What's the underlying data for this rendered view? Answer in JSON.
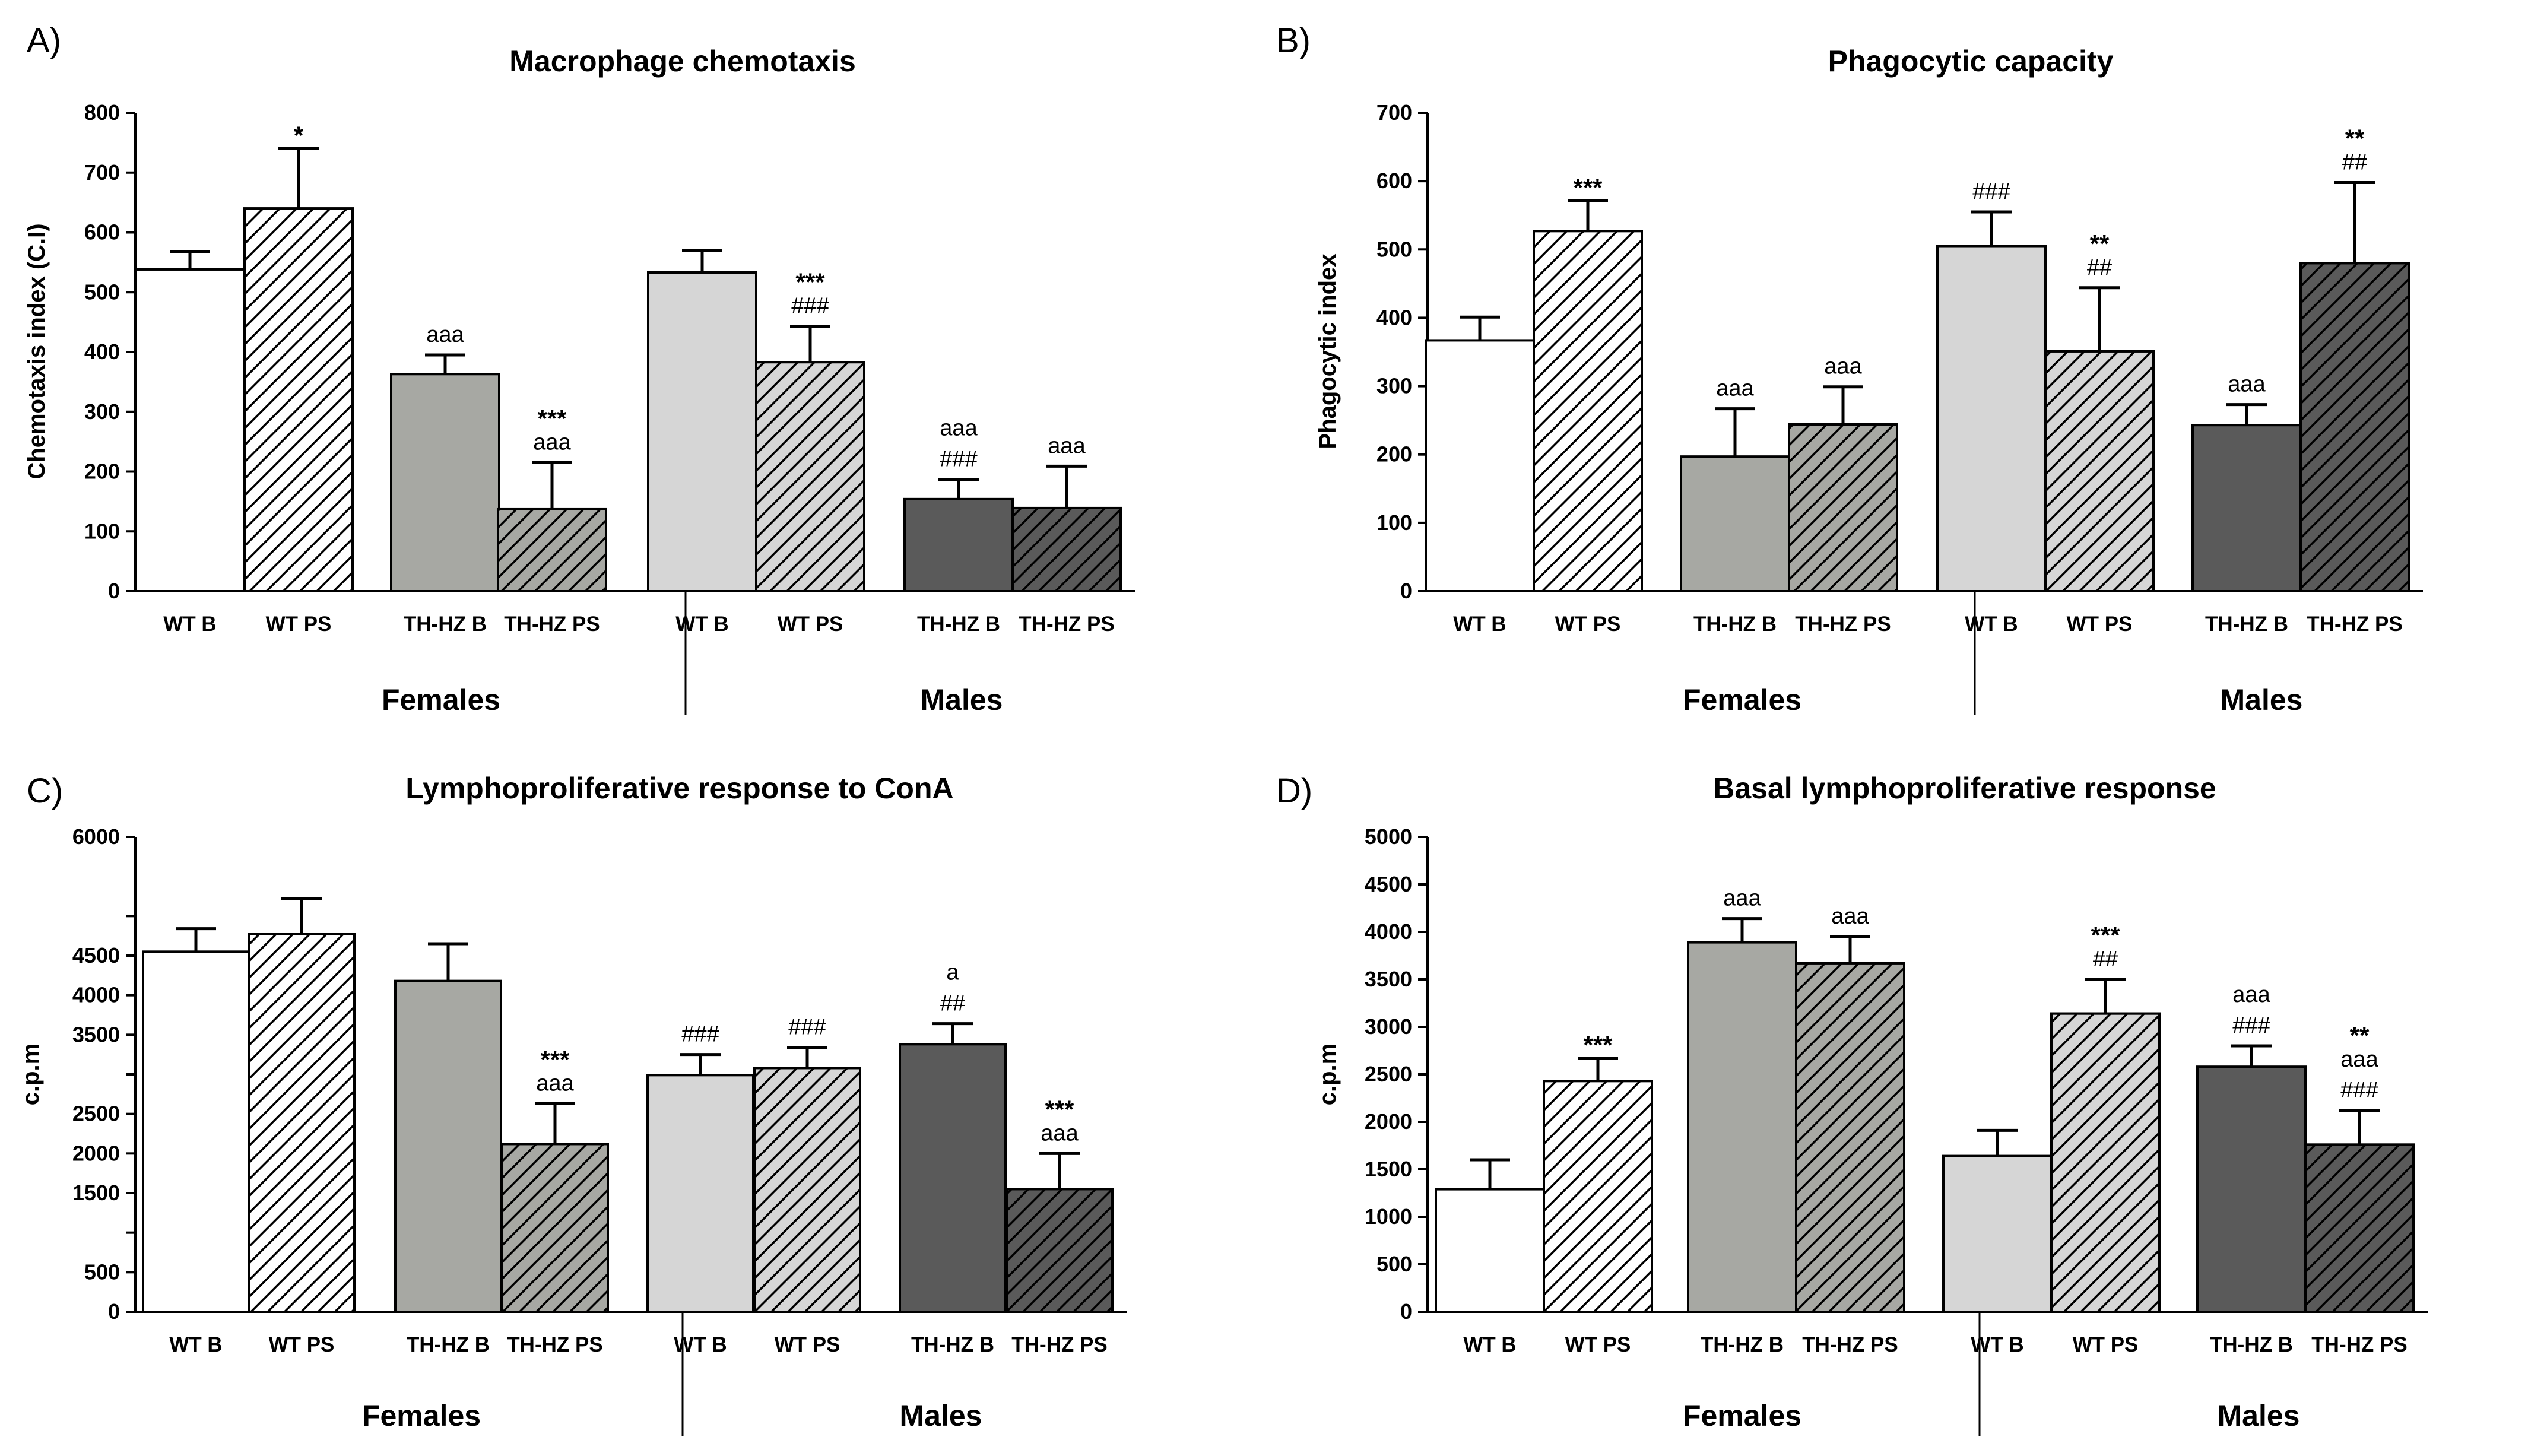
{
  "figure": {
    "panels": [
      {
        "letter": "A)",
        "title": "Macrophage chemotaxis",
        "ylabel": "Chemotaxis index (C.I)",
        "groups": [
          "Females",
          "Males"
        ]
      },
      {
        "letter": "B)",
        "title": "Phagocytic capacity",
        "ylabel": "Phagocytic index",
        "groups": [
          "Females",
          "Males"
        ]
      },
      {
        "letter": "C)",
        "title": "Lymphoproliferative response to ConA",
        "ylabel": "c.p.m",
        "groups": [
          "Females",
          "Males"
        ]
      },
      {
        "letter": "D)",
        "title": "Basal lymphoproliferative response",
        "ylabel": "c.p.m",
        "groups": [
          "Females",
          "Males"
        ]
      }
    ]
  },
  "chart_data": [
    {
      "type": "bar",
      "title": "Macrophage chemotaxis",
      "ylabel": "Chemotaxis index (C.I)",
      "ylim": [
        0,
        800
      ],
      "yticks": [
        0,
        100,
        200,
        300,
        400,
        500,
        600,
        700,
        800
      ],
      "ytick_labels": [
        "0",
        "100",
        "200",
        "300",
        "400",
        "500",
        "600",
        "700",
        "800"
      ],
      "groups": [
        "Females",
        "Males"
      ],
      "categories": [
        "WT B",
        "WT PS",
        "TH-HZ B",
        "TH-HZ PS",
        "WT B",
        "WT PS",
        "TH-HZ B",
        "TH-HZ PS"
      ],
      "values": [
        538,
        640,
        363,
        137,
        533,
        383,
        154,
        139
      ],
      "errors": [
        30,
        100,
        32,
        78,
        37,
        60,
        33,
        70
      ],
      "annotations": [
        [],
        [
          "*"
        ],
        [
          "aaa"
        ],
        [
          "***",
          "aaa"
        ],
        [],
        [
          "***",
          "###"
        ],
        [
          "aaa",
          "###"
        ],
        [
          "aaa"
        ]
      ]
    },
    {
      "type": "bar",
      "title": "Phagocytic capacity",
      "ylabel": "Phagocytic index",
      "ylim": [
        0,
        700
      ],
      "yticks": [
        0,
        100,
        200,
        300,
        400,
        500,
        600,
        700
      ],
      "ytick_labels": [
        "0",
        "100",
        "200",
        "300",
        "400",
        "500",
        "600",
        "700"
      ],
      "groups": [
        "Females",
        "Males"
      ],
      "categories": [
        "WT B",
        "WT PS",
        "TH-HZ B",
        "TH-HZ PS",
        "WT B",
        "WT PS",
        "TH-HZ B",
        "TH-HZ PS"
      ],
      "values": [
        367,
        527,
        197,
        244,
        505,
        351,
        243,
        480
      ],
      "errors": [
        34,
        44,
        70,
        55,
        50,
        93,
        30,
        118
      ],
      "annotations": [
        [],
        [
          "***"
        ],
        [
          "aaa"
        ],
        [
          "aaa"
        ],
        [
          "###"
        ],
        [
          "**",
          "##"
        ],
        [
          "aaa"
        ],
        [
          "**",
          "##"
        ]
      ]
    },
    {
      "type": "bar",
      "title": "Lymphoproliferative response to ConA",
      "ylabel": "c.p.m",
      "ylim": [
        0,
        6000
      ],
      "yticks": [
        0,
        500,
        1000,
        1500,
        2000,
        2500,
        3000,
        3500,
        4000,
        4500,
        5000,
        6000
      ],
      "ytick_labels": [
        "0",
        "500",
        "",
        "1500",
        "2000",
        "2500",
        "",
        "3500",
        "4000",
        "4500",
        "",
        "6000"
      ],
      "groups": [
        "Females",
        "Males"
      ],
      "categories": [
        "WT B",
        "WT PS",
        "TH-HZ B",
        "TH-HZ PS",
        "WT B",
        "WT PS",
        "TH-HZ B",
        "TH-HZ PS"
      ],
      "values": [
        4550,
        4770,
        4180,
        2120,
        2990,
        3080,
        3380,
        1550
      ],
      "errors": [
        290,
        450,
        470,
        510,
        260,
        260,
        260,
        450
      ],
      "annotations": [
        [],
        [],
        [],
        [
          "***",
          "aaa"
        ],
        [
          "###"
        ],
        [
          "###"
        ],
        [
          "a",
          "##"
        ],
        [
          "***",
          "aaa"
        ]
      ]
    },
    {
      "type": "bar",
      "title": "Basal lymphoproliferative response",
      "ylabel": "c.p.m",
      "ylim": [
        0,
        5000
      ],
      "yticks": [
        0,
        500,
        1000,
        1500,
        2000,
        2500,
        3000,
        3500,
        4000,
        4500,
        5000
      ],
      "ytick_labels": [
        "0",
        "500",
        "1000",
        "1500",
        "2000",
        "2500",
        "3000",
        "3500",
        "4000",
        "4500",
        "5000"
      ],
      "groups": [
        "Females",
        "Males"
      ],
      "categories": [
        "WT B",
        "WT PS",
        "TH-HZ B",
        "TH-HZ PS",
        "WT B",
        "WT PS",
        "TH-HZ B",
        "TH-HZ PS"
      ],
      "values": [
        1290,
        2430,
        3890,
        3670,
        1640,
        3140,
        2580,
        1760
      ],
      "errors": [
        310,
        240,
        250,
        280,
        270,
        360,
        220,
        360
      ],
      "annotations": [
        [],
        [
          "***"
        ],
        [
          "aaa"
        ],
        [
          "aaa"
        ],
        [],
        [
          "***",
          "##"
        ],
        [
          "aaa",
          "###"
        ],
        [
          "**",
          "aaa",
          "###"
        ]
      ]
    }
  ],
  "bar_styles": [
    {
      "fill": "#ffffff",
      "hatch": false
    },
    {
      "fill": "#ffffff",
      "hatch": true
    },
    {
      "fill": "#a7a8a3",
      "hatch": false
    },
    {
      "fill": "#a7a8a3",
      "hatch": true
    },
    {
      "fill": "#d6d6d6",
      "hatch": false
    },
    {
      "fill": "#d6d6d6",
      "hatch": true
    },
    {
      "fill": "#5a5a5a",
      "hatch": false
    },
    {
      "fill": "#5a5a5a",
      "hatch": true
    }
  ]
}
